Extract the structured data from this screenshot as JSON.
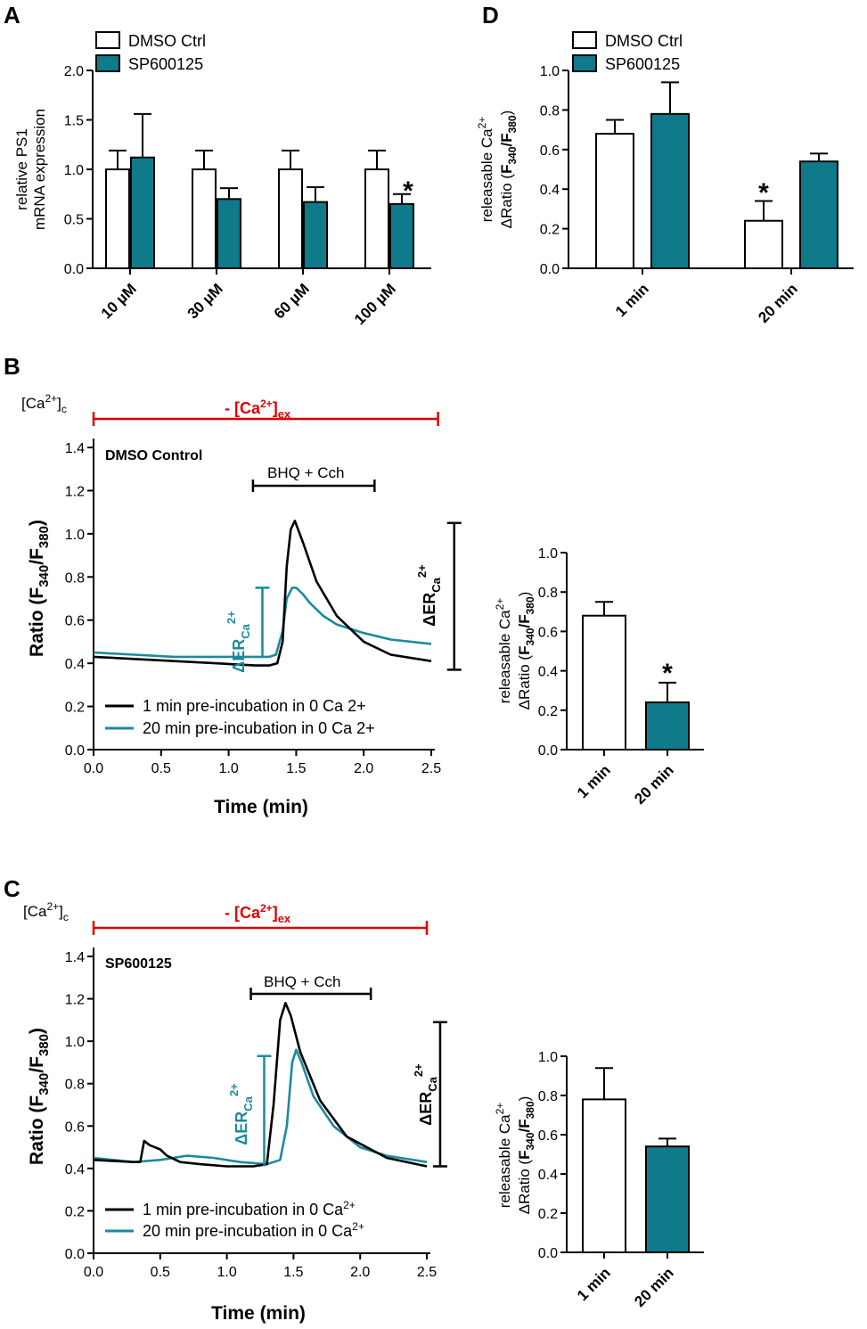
{
  "colors": {
    "dmso": "#ffffff",
    "sp": "#0e7a8a",
    "trace_20": "#1b8b9c",
    "trace_1": "#000000",
    "red": "#e00000",
    "stroke": "#000000"
  },
  "panels": {
    "A": {
      "label": "A",
      "legend": [
        "DMSO Ctrl",
        "SP600125"
      ],
      "ylabel_lines": [
        "relative PS1",
        "mRNA expression"
      ],
      "star": "*"
    },
    "D": {
      "label": "D",
      "legend": [
        "DMSO Ctrl",
        "SP600125"
      ],
      "ylabel_lines": [
        "releasable Ca",
        "ΔRatio (F340/F380)"
      ],
      "star": "*"
    },
    "B": {
      "label": "B",
      "indicator": "[Ca2+]c",
      "ex_label": "- [Ca2+]ex",
      "title": "DMSO Control",
      "bar_label": "BHQ + Cch",
      "ylabel": "Ratio (F340/F380)",
      "xlabel": "Time (min)",
      "delta_label": "ΔERCa2+",
      "legend": [
        "1 min pre-incubation in 0 Ca 2+",
        "20 min pre-incubation in 0 Ca 2+"
      ],
      "star": "*"
    },
    "C": {
      "label": "C",
      "indicator": "[Ca2+]c",
      "ex_label": "- [Ca2+]ex",
      "title": "SP600125",
      "bar_label": "BHQ + Cch",
      "ylabel": "Ratio (F340/F380)",
      "xlabel": "Time (min)",
      "delta_label": "ΔERCa2+",
      "legend": [
        "1 min pre-incubation in 0 Ca2+",
        "20 min pre-incubation in 0 Ca2+"
      ]
    }
  },
  "chart_data": [
    {
      "id": "A",
      "type": "bar",
      "categories": [
        "10 µM",
        "30 µM",
        "60 µM",
        "100 µM"
      ],
      "series": [
        {
          "name": "DMSO Ctrl",
          "values": [
            1.0,
            1.0,
            1.0,
            1.0
          ],
          "err": [
            0.19,
            0.19,
            0.19,
            0.19
          ]
        },
        {
          "name": "SP600125",
          "values": [
            1.12,
            0.7,
            0.67,
            0.65
          ],
          "err": [
            0.44,
            0.11,
            0.15,
            0.1
          ]
        }
      ],
      "ylabel": "relative PS1 mRNA expression",
      "ylim": [
        0,
        2.0
      ],
      "yticks": [
        0.0,
        0.5,
        1.0,
        1.5,
        2.0
      ],
      "significant": [
        {
          "category": "100 µM",
          "series": "SP600125"
        }
      ]
    },
    {
      "id": "D",
      "type": "bar",
      "categories": [
        "1 min",
        "20 min"
      ],
      "series": [
        {
          "name": "DMSO Ctrl",
          "values": [
            0.68,
            0.24
          ],
          "err": [
            0.07,
            0.1
          ]
        },
        {
          "name": "SP600125",
          "values": [
            0.78,
            0.54
          ],
          "err": [
            0.16,
            0.04
          ]
        }
      ],
      "ylabel": "releasable Ca2+ ΔRatio (F340/F380)",
      "ylim": [
        0,
        1.0
      ],
      "yticks": [
        0.0,
        0.2,
        0.4,
        0.6,
        0.8,
        1.0
      ],
      "significant": [
        {
          "category": "20 min",
          "series": "DMSO Ctrl"
        }
      ]
    },
    {
      "id": "B",
      "type": "line",
      "xlabel": "Time (min)",
      "ylabel": "Ratio (F340/F380)",
      "xlim": [
        0,
        2.5
      ],
      "ylim": [
        0,
        1.4
      ],
      "xticks": [
        0.0,
        0.5,
        1.0,
        1.5,
        2.0,
        2.5
      ],
      "yticks": [
        0.0,
        0.2,
        0.4,
        0.6,
        0.8,
        1.0,
        1.2,
        1.4
      ],
      "ex_bar": [
        0.0,
        2.55
      ],
      "treatment_bar": [
        1.18,
        2.08
      ],
      "delta_er_20": [
        1.25,
        0.43,
        0.75
      ],
      "delta_er_1": [
        2.67,
        0.37,
        1.05
      ],
      "series": [
        {
          "name": "1 min pre-incubation in 0 Ca 2+",
          "x": [
            0,
            0.3,
            0.6,
            0.9,
            1.2,
            1.3,
            1.36,
            1.4,
            1.43,
            1.46,
            1.49,
            1.55,
            1.65,
            1.8,
            2.0,
            2.2,
            2.5
          ],
          "y": [
            0.43,
            0.42,
            0.41,
            0.4,
            0.39,
            0.39,
            0.4,
            0.5,
            0.85,
            1.02,
            1.06,
            0.96,
            0.78,
            0.62,
            0.5,
            0.44,
            0.41
          ]
        },
        {
          "name": "20 min pre-incubation in 0 Ca 2+",
          "x": [
            0,
            0.3,
            0.6,
            0.9,
            1.2,
            1.3,
            1.35,
            1.4,
            1.43,
            1.47,
            1.5,
            1.55,
            1.6,
            1.7,
            1.8,
            2.0,
            2.2,
            2.5
          ],
          "y": [
            0.45,
            0.44,
            0.43,
            0.43,
            0.43,
            0.43,
            0.44,
            0.55,
            0.7,
            0.75,
            0.75,
            0.72,
            0.68,
            0.62,
            0.58,
            0.54,
            0.51,
            0.49
          ]
        }
      ]
    },
    {
      "id": "B-bar",
      "type": "bar",
      "categories": [
        "1 min",
        "20 min"
      ],
      "values": [
        0.68,
        0.24
      ],
      "err": [
        0.07,
        0.1
      ],
      "ylabel": "releasable Ca2+ ΔRatio (F340/F380)",
      "ylim": [
        0,
        1.0
      ],
      "yticks": [
        0.0,
        0.2,
        0.4,
        0.6,
        0.8,
        1.0
      ],
      "significant": [
        "20 min"
      ]
    },
    {
      "id": "C",
      "type": "line",
      "xlabel": "Time (min)",
      "ylabel": "Ratio (F340/F380)",
      "xlim": [
        0,
        2.5
      ],
      "ylim": [
        0,
        1.4
      ],
      "xticks": [
        0.0,
        0.5,
        1.0,
        1.5,
        2.0,
        2.5
      ],
      "yticks": [
        0.0,
        0.2,
        0.4,
        0.6,
        0.8,
        1.0,
        1.2,
        1.4
      ],
      "ex_bar": [
        0.0,
        2.5
      ],
      "treatment_bar": [
        1.18,
        2.08
      ],
      "delta_er_20": [
        1.28,
        0.41,
        0.93
      ],
      "delta_er_1": [
        2.6,
        0.41,
        1.09
      ],
      "series": [
        {
          "name": "1 min pre-incubation in 0 Ca2+",
          "x": [
            0,
            0.3,
            0.35,
            0.38,
            0.42,
            0.5,
            0.55,
            0.65,
            0.8,
            1.0,
            1.2,
            1.3,
            1.35,
            1.4,
            1.44,
            1.48,
            1.55,
            1.7,
            1.9,
            2.2,
            2.5
          ],
          "y": [
            0.44,
            0.43,
            0.43,
            0.53,
            0.51,
            0.49,
            0.46,
            0.43,
            0.42,
            0.41,
            0.41,
            0.42,
            0.7,
            1.1,
            1.18,
            1.12,
            0.95,
            0.72,
            0.55,
            0.45,
            0.41
          ]
        },
        {
          "name": "20 min pre-incubation in 0 Ca2+",
          "x": [
            0,
            0.3,
            0.5,
            0.7,
            0.9,
            1.1,
            1.3,
            1.4,
            1.45,
            1.49,
            1.52,
            1.56,
            1.65,
            1.8,
            2.0,
            2.2,
            2.5
          ],
          "y": [
            0.45,
            0.43,
            0.44,
            0.46,
            0.45,
            0.43,
            0.42,
            0.44,
            0.6,
            0.9,
            0.96,
            0.9,
            0.74,
            0.6,
            0.5,
            0.46,
            0.43
          ]
        }
      ]
    },
    {
      "id": "C-bar",
      "type": "bar",
      "categories": [
        "1 min",
        "20 min"
      ],
      "values": [
        0.78,
        0.54
      ],
      "err": [
        0.16,
        0.04
      ],
      "ylabel": "releasable Ca2+ ΔRatio (F340/F380)",
      "ylim": [
        0,
        1.0
      ],
      "yticks": [
        0.0,
        0.2,
        0.4,
        0.6,
        0.8,
        1.0
      ]
    }
  ]
}
